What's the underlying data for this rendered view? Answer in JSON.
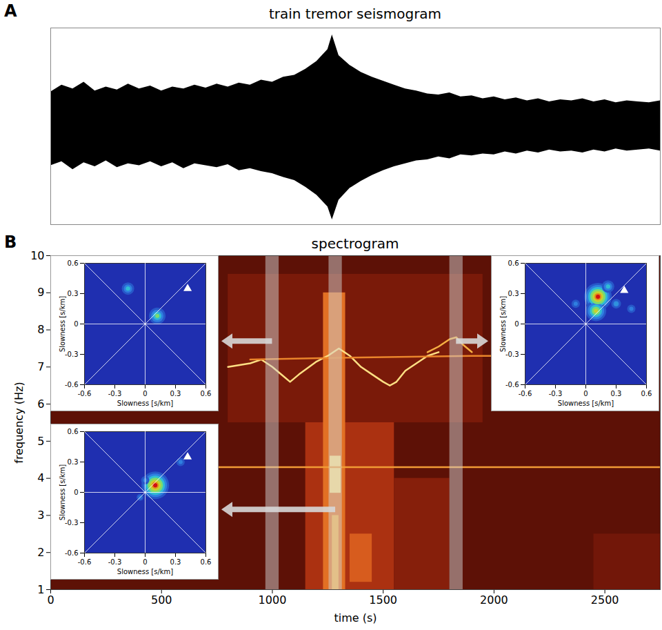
{
  "chart_data": [
    {
      "panel": "A",
      "type": "area",
      "title": "train tremor seismogram",
      "color": "#000000",
      "tick_labels": false,
      "xlim": [
        0,
        2750
      ],
      "ylim": [
        -1,
        1
      ],
      "x": [
        0,
        50,
        100,
        150,
        200,
        250,
        300,
        350,
        400,
        450,
        500,
        550,
        600,
        650,
        700,
        750,
        800,
        850,
        900,
        950,
        1000,
        1050,
        1100,
        1150,
        1200,
        1250,
        1270,
        1300,
        1350,
        1400,
        1450,
        1500,
        1550,
        1600,
        1650,
        1700,
        1750,
        1800,
        1850,
        1900,
        1950,
        2000,
        2050,
        2100,
        2150,
        2200,
        2250,
        2300,
        2350,
        2400,
        2450,
        2500,
        2550,
        2600,
        2650,
        2700,
        2750
      ],
      "upper": [
        0.35,
        0.42,
        0.38,
        0.45,
        0.36,
        0.4,
        0.37,
        0.43,
        0.38,
        0.41,
        0.36,
        0.4,
        0.38,
        0.42,
        0.39,
        0.43,
        0.4,
        0.44,
        0.42,
        0.47,
        0.45,
        0.5,
        0.52,
        0.58,
        0.66,
        0.78,
        0.93,
        0.72,
        0.62,
        0.55,
        0.5,
        0.46,
        0.42,
        0.38,
        0.36,
        0.33,
        0.32,
        0.34,
        0.3,
        0.31,
        0.28,
        0.3,
        0.27,
        0.29,
        0.26,
        0.28,
        0.25,
        0.27,
        0.26,
        0.28,
        0.25,
        0.27,
        0.24,
        0.26,
        0.25,
        0.24,
        0.26
      ],
      "lower": [
        -0.4,
        -0.36,
        -0.44,
        -0.37,
        -0.41,
        -0.35,
        -0.42,
        -0.38,
        -0.4,
        -0.36,
        -0.41,
        -0.37,
        -0.43,
        -0.38,
        -0.4,
        -0.42,
        -0.39,
        -0.45,
        -0.43,
        -0.46,
        -0.48,
        -0.52,
        -0.55,
        -0.62,
        -0.7,
        -0.82,
        -0.95,
        -0.75,
        -0.63,
        -0.56,
        -0.5,
        -0.45,
        -0.41,
        -0.38,
        -0.35,
        -0.34,
        -0.31,
        -0.33,
        -0.29,
        -0.3,
        -0.28,
        -0.29,
        -0.26,
        -0.28,
        -0.25,
        -0.27,
        -0.24,
        -0.26,
        -0.25,
        -0.27,
        -0.24,
        -0.26,
        -0.23,
        -0.25,
        -0.24,
        -0.23,
        -0.25
      ]
    },
    {
      "panel": "B",
      "type": "heatmap",
      "title": "spectrogram",
      "x_label": "time (s)",
      "y_label": "frequency (Hz)",
      "xlim": [
        0,
        2750
      ],
      "xticks": [
        0,
        500,
        1000,
        1500,
        2000,
        2500
      ],
      "ylim": [
        1,
        10
      ],
      "yticks": [
        1,
        2,
        3,
        4,
        5,
        6,
        7,
        8,
        9,
        10
      ],
      "clim": [
        0,
        1
      ],
      "cells": [
        {
          "x0": 0,
          "x1": 2750,
          "y0": 1,
          "y1": 10,
          "level": 0.15
        },
        {
          "x0": 800,
          "x1": 1950,
          "y0": 5.5,
          "y1": 9.5,
          "level": 0.22
        },
        {
          "x0": 1150,
          "x1": 1550,
          "y0": 1,
          "y1": 5.5,
          "level": 0.35
        },
        {
          "x0": 1230,
          "x1": 1330,
          "y0": 1,
          "y1": 9,
          "level": 0.55
        },
        {
          "x0": 1260,
          "x1": 1310,
          "y0": 3.6,
          "y1": 4.6,
          "level": 0.85
        },
        {
          "x0": 1270,
          "x1": 1300,
          "y0": 1,
          "y1": 3,
          "level": 0.7
        },
        {
          "x0": 1350,
          "x1": 1450,
          "y0": 1.2,
          "y1": 2.5,
          "level": 0.5
        },
        {
          "x0": 1550,
          "x1": 1800,
          "y0": 1,
          "y1": 4,
          "level": 0.25
        },
        {
          "x0": 2450,
          "x1": 2750,
          "y0": 1,
          "y1": 2.5,
          "level": 0.2
        }
      ],
      "lines": [
        {
          "level": 0.85,
          "x": [
            800,
            900,
            950,
            1000,
            1050,
            1080,
            1120,
            1200,
            1250,
            1300,
            1350,
            1400,
            1450,
            1500,
            1530,
            1560,
            1600,
            1650,
            1700,
            1750
          ],
          "y": [
            7.0,
            7.1,
            7.2,
            7.0,
            6.75,
            6.6,
            6.8,
            7.15,
            7.3,
            7.5,
            7.3,
            7.0,
            6.8,
            6.6,
            6.5,
            6.6,
            6.9,
            7.1,
            7.3,
            7.4
          ]
        },
        {
          "level": 0.6,
          "x": [
            900,
            1300,
            1900,
            2000
          ],
          "y": [
            7.2,
            7.25,
            7.3,
            7.3
          ]
        },
        {
          "level": 0.7,
          "x": [
            1700,
            1750,
            1800,
            1830,
            1860,
            1900
          ],
          "y": [
            7.4,
            7.55,
            7.75,
            7.8,
            7.6,
            7.4
          ]
        },
        {
          "level": 0.65,
          "x": [
            0,
            2750
          ],
          "y": [
            4.3,
            4.3
          ]
        }
      ],
      "windows": [
        [
          970,
          1030
        ],
        [
          1255,
          1315
        ],
        [
          1800,
          1860
        ]
      ],
      "insets": [
        {
          "type": "heatmap",
          "window": 0,
          "x_label": "Slowness [s/km]",
          "y_label": "Slowness [s/km]",
          "xlim": [
            -0.6,
            0.6
          ],
          "ylim": [
            -0.6,
            0.6
          ],
          "xticks": [
            -0.6,
            -0.3,
            0,
            0.3,
            0.6
          ],
          "yticks": [
            -0.6,
            -0.3,
            0,
            0.3,
            0.6
          ],
          "clim": [
            0,
            1
          ],
          "marker": "triangle",
          "marker_point": [
            0.42,
            0.35
          ],
          "blobs": [
            {
              "sx": -0.17,
              "sy": 0.35,
              "intensity": 0.45
            },
            {
              "sx": 0.12,
              "sy": 0.08,
              "intensity": 0.6
            }
          ]
        },
        {
          "type": "heatmap",
          "window": 1,
          "x_label": "Slowness [s/km]",
          "y_label": "Slowness [s/km]",
          "xlim": [
            -0.6,
            0.6
          ],
          "ylim": [
            -0.6,
            0.6
          ],
          "xticks": [
            -0.6,
            -0.3,
            0,
            0.3,
            0.6
          ],
          "yticks": [
            -0.6,
            -0.3,
            0,
            0.3,
            0.6
          ],
          "clim": [
            0,
            1
          ],
          "marker": "triangle",
          "marker_point": [
            0.42,
            0.35
          ],
          "blobs": [
            {
              "sx": 0.0,
              "sy": 0.12,
              "intensity": 0.3
            },
            {
              "sx": 0.35,
              "sy": 0.3,
              "intensity": 0.3
            },
            {
              "sx": -0.05,
              "sy": -0.05,
              "intensity": 0.25
            },
            {
              "sx": 0.1,
              "sy": 0.07,
              "intensity": 1.0
            }
          ]
        },
        {
          "type": "heatmap",
          "window": 2,
          "x_label": "Slowness [s/km]",
          "y_label": "Slowness [s/km]",
          "xlim": [
            -0.6,
            0.6
          ],
          "ylim": [
            -0.6,
            0.6
          ],
          "xticks": [
            -0.6,
            -0.3,
            0,
            0.3,
            0.6
          ],
          "yticks": [
            -0.6,
            -0.3,
            0,
            0.3,
            0.6
          ],
          "clim": [
            0,
            1
          ],
          "marker": "triangle",
          "marker_point": [
            0.38,
            0.33
          ],
          "blobs": [
            {
              "sx": -0.1,
              "sy": 0.2,
              "intensity": 0.3
            },
            {
              "sx": 0.45,
              "sy": 0.15,
              "intensity": 0.3
            },
            {
              "sx": 0.3,
              "sy": 0.2,
              "intensity": 0.35
            },
            {
              "sx": 0.22,
              "sy": 0.37,
              "intensity": 0.45
            },
            {
              "sx": 0.1,
              "sy": 0.13,
              "intensity": 0.75
            },
            {
              "sx": 0.12,
              "sy": 0.27,
              "intensity": 1.0
            }
          ]
        }
      ]
    }
  ]
}
